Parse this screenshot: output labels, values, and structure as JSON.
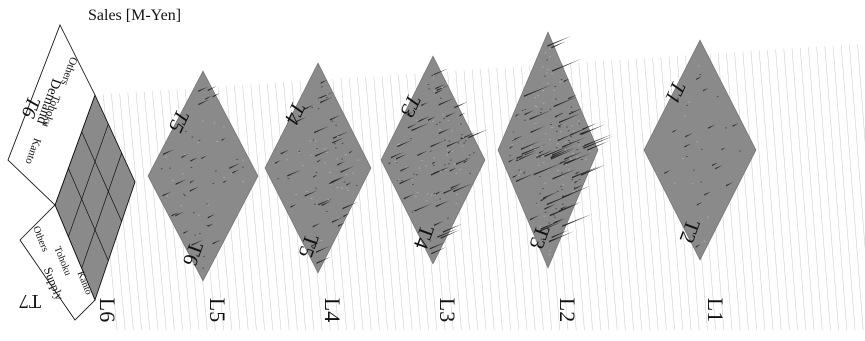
{
  "chart_data": {
    "type": "3d surface",
    "value_axis_label": "Sales [M-Yen]",
    "level_labels": [
      "L1",
      "L2",
      "L3",
      "L4",
      "L5",
      "L6"
    ],
    "tier_labels": [
      "T1",
      "T2",
      "T3",
      "T4",
      "T5",
      "T6",
      "T7"
    ],
    "panels": [
      {
        "level": "L1",
        "upper_tier": "T1",
        "lower_tier": "T2"
      },
      {
        "level": "L2",
        "upper_tier": "",
        "lower_tier": "T3"
      },
      {
        "level": "L3",
        "upper_tier": "T3",
        "lower_tier": "T4"
      },
      {
        "level": "L4",
        "upper_tier": "T4",
        "lower_tier": "T5"
      },
      {
        "level": "L5",
        "upper_tier": "T5",
        "lower_tier": "T6"
      },
      {
        "level": "L6",
        "upper_tier": "T6",
        "lower_tier": "T7"
      }
    ],
    "axis_headers": {
      "demand": {
        "title": "Demand",
        "regions": [
          "Kanto",
          "Tohoku",
          "Others"
        ]
      },
      "supply": {
        "title": "Supply",
        "regions": [
          "Others",
          "Tohoku",
          "Kanto"
        ]
      }
    },
    "colors": {
      "surface": "#8a8a8a",
      "spike": "#2a2a2a",
      "grid": "#c8c8c8",
      "frame": "#000000"
    }
  }
}
